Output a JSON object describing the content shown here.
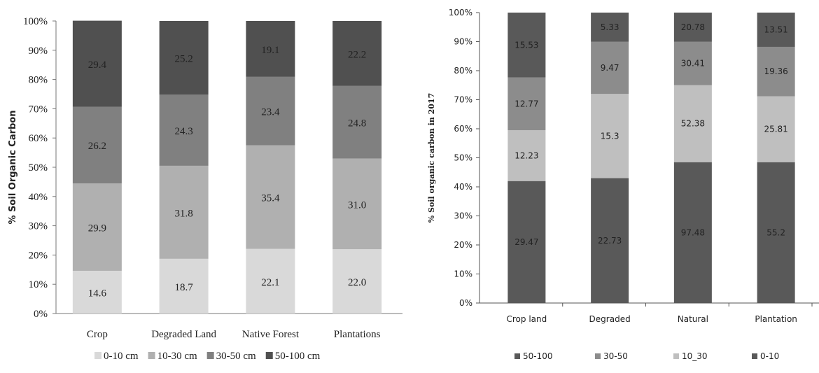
{
  "chart_data": [
    {
      "type": "bar",
      "stacked": true,
      "ylabel": "% Soil Organic Carbon",
      "xlabel": "",
      "title": "",
      "ylim": [
        0,
        100
      ],
      "yticks": [
        "0%",
        "10%",
        "20%",
        "30%",
        "40%",
        "50%",
        "60%",
        "70%",
        "80%",
        "90%",
        "100%"
      ],
      "categories": [
        "Crop",
        "Degraded Land",
        "Native Forest",
        "Plantations"
      ],
      "legend_position": "bottom",
      "series": [
        {
          "name": "0-10 cm",
          "color": "#d9d9d9",
          "values": [
            14.6,
            18.7,
            22.1,
            22.0
          ]
        },
        {
          "name": "10-30 cm",
          "color": "#b0b0b0",
          "values": [
            29.9,
            31.8,
            35.4,
            31.0
          ]
        },
        {
          "name": "30-50 cm",
          "color": "#808080",
          "values": [
            26.2,
            24.3,
            23.4,
            24.8
          ]
        },
        {
          "name": "50-100 cm",
          "color": "#505050",
          "values": [
            29.4,
            25.2,
            19.1,
            22.2
          ]
        }
      ],
      "labels": [
        [
          "14.6",
          "18.7",
          "22.1",
          "22.0"
        ],
        [
          "29.9",
          "31.8",
          "35.4",
          "31.0"
        ],
        [
          "26.2",
          "24.3",
          "23.4",
          "24.8"
        ],
        [
          "29.4",
          "25.2",
          "19.1",
          "22.2"
        ]
      ]
    },
    {
      "type": "bar",
      "stacked": true,
      "ylabel": "% Soil organic carbon in 2017",
      "xlabel": "",
      "title": "",
      "ylim": [
        0,
        100
      ],
      "yticks": [
        "0%",
        "10%",
        "20%",
        "30%",
        "40%",
        "50%",
        "60%",
        "70%",
        "80%",
        "90%",
        "100%"
      ],
      "categories": [
        "Crop land",
        "Degraded",
        "Natural",
        "Plantation"
      ],
      "legend_position": "bottom",
      "legend_order": [
        "50-100",
        "30-50",
        "10_30",
        "0-10"
      ],
      "series": [
        {
          "name": "0-10",
          "color": "#595959",
          "values": [
            42.0,
            43.0,
            48.5,
            48.5
          ],
          "labels": [
            "29.47",
            "22.73",
            "97.48",
            "55.2"
          ]
        },
        {
          "name": "10_30",
          "color": "#bfbfbf",
          "values": [
            17.5,
            29.0,
            26.5,
            22.7
          ],
          "labels": [
            "12.23",
            "15.3",
            "52.38",
            "25.81"
          ]
        },
        {
          "name": "30-50",
          "color": "#8c8c8c",
          "values": [
            18.2,
            18.0,
            15.0,
            17.0
          ],
          "labels": [
            "12.77",
            "9.47",
            "30.41",
            "19.36"
          ]
        },
        {
          "name": "50-100",
          "color": "#595959",
          "values": [
            22.3,
            10.0,
            10.0,
            11.8
          ],
          "labels": [
            "15.53",
            "5.33",
            "20.78",
            "13.51"
          ]
        }
      ]
    }
  ],
  "caption": {
    "text": ""
  }
}
